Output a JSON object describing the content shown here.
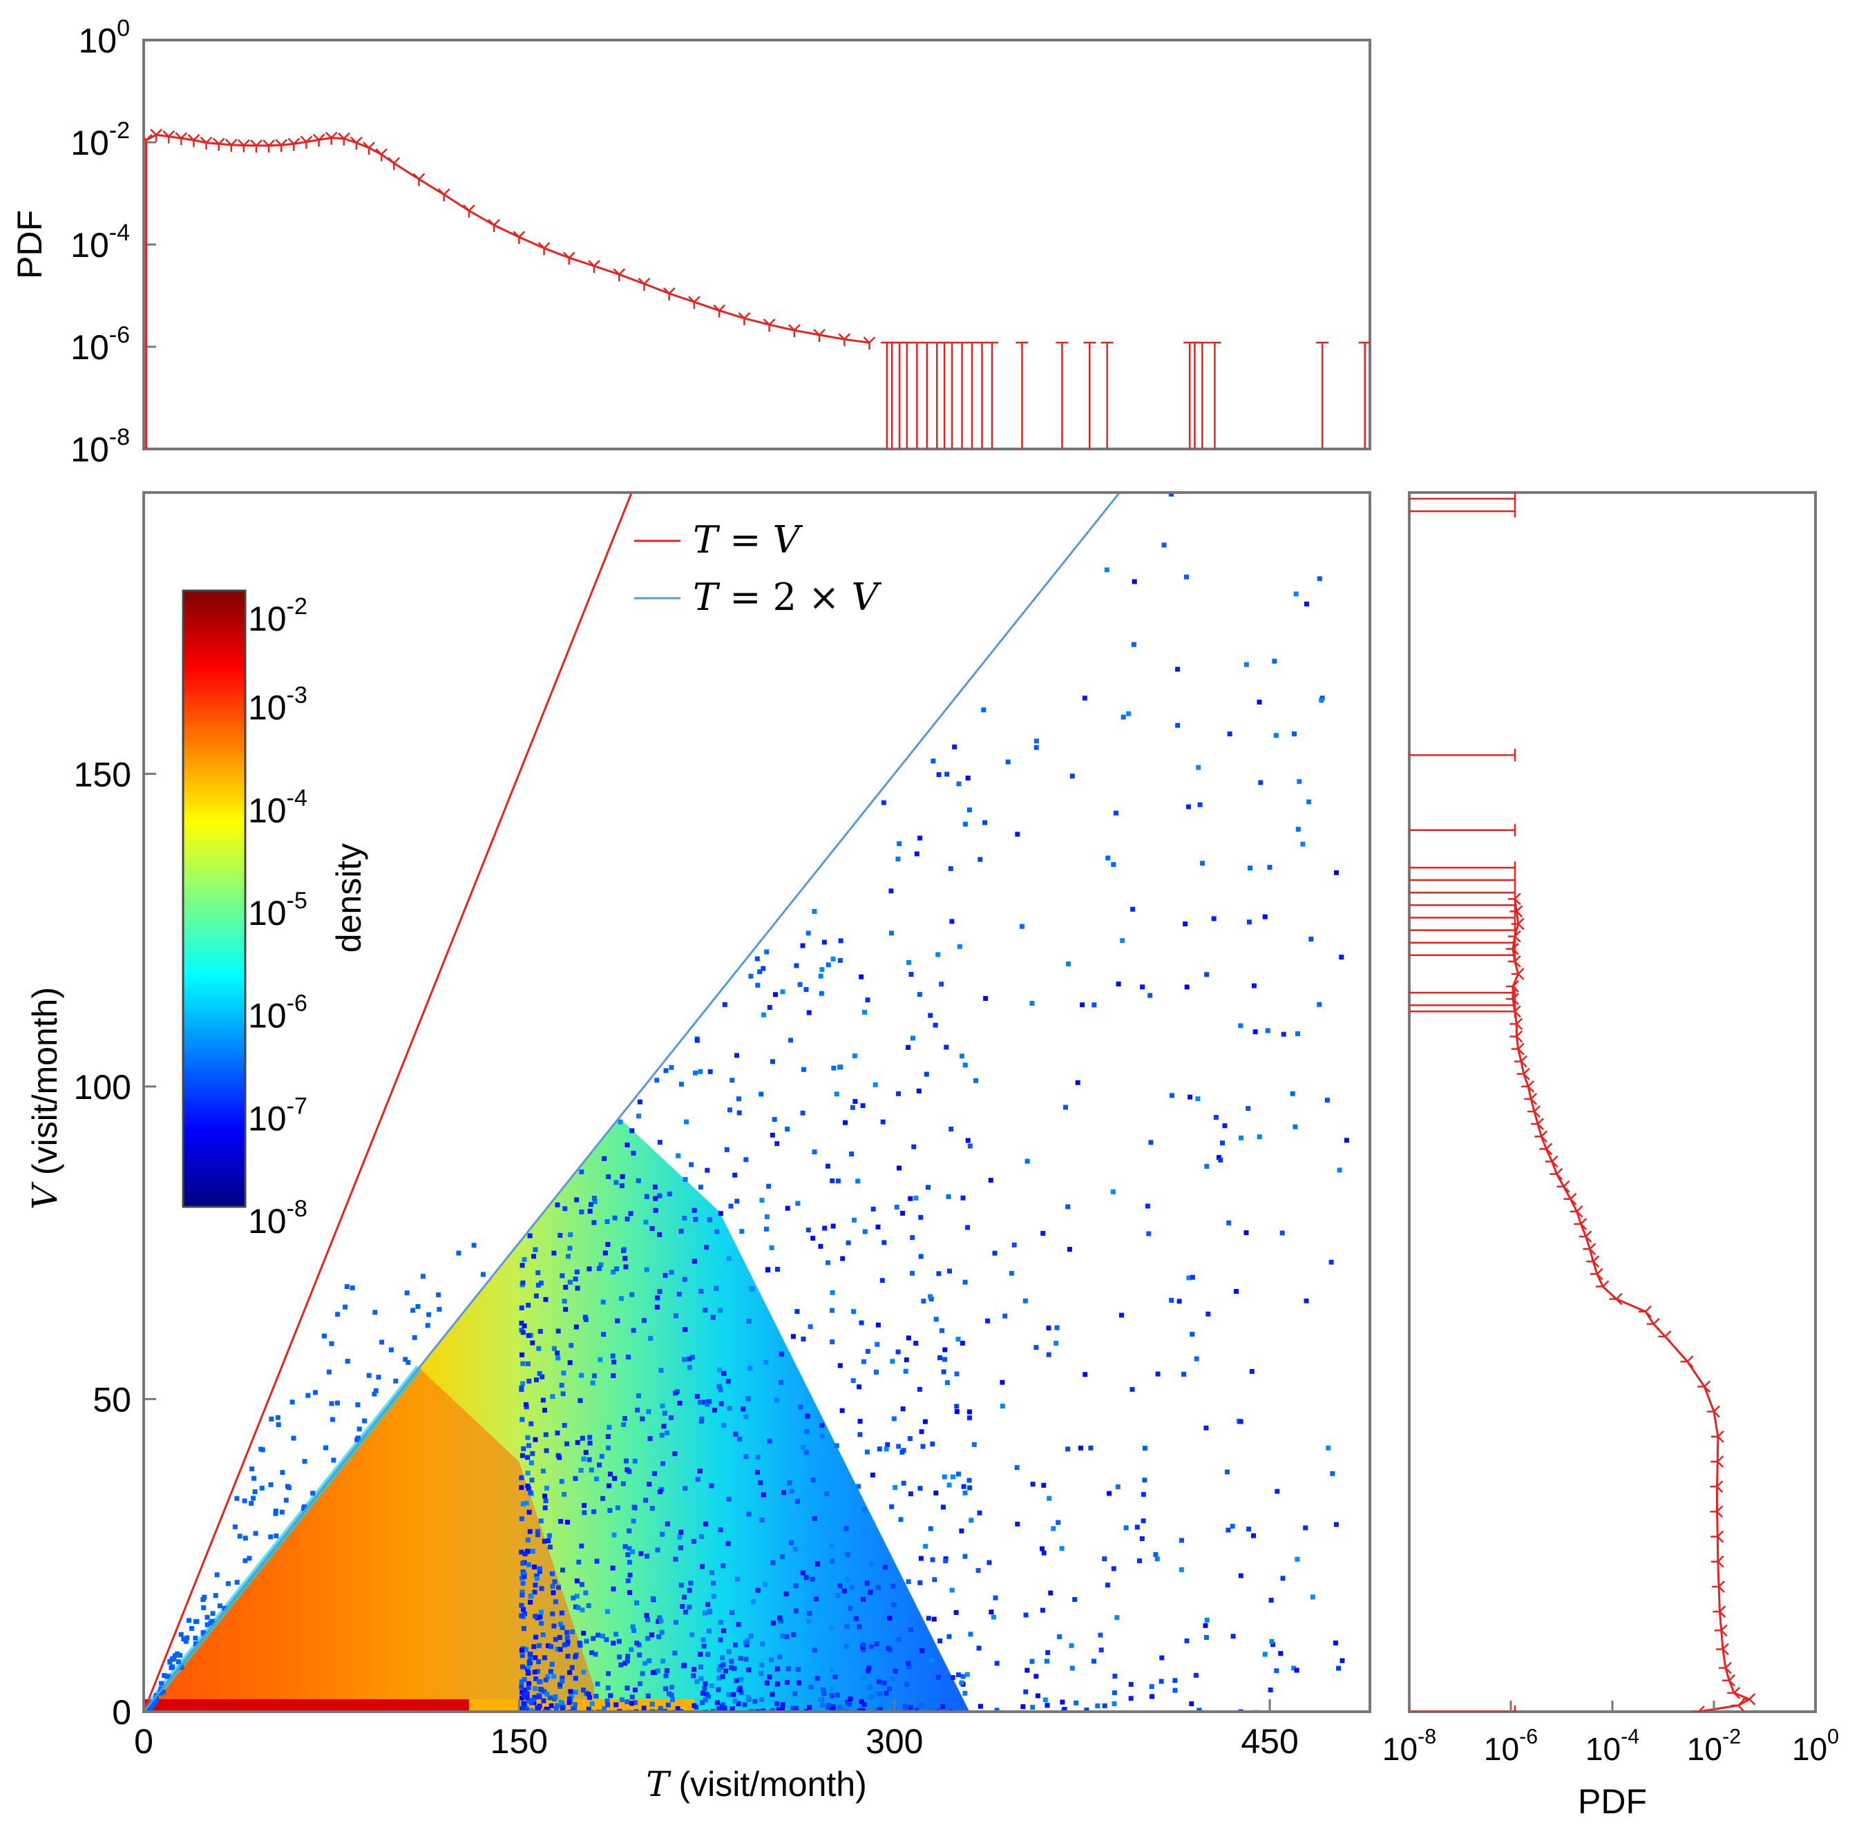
{
  "chart_data": [
    {
      "panel": "top-marginal",
      "type": "line",
      "ylabel": "PDF",
      "yscale": "log",
      "ylim": [
        1e-08,
        1
      ],
      "xlim": [
        0,
        490
      ],
      "y_ticks": [
        {
          "base": "10",
          "exp": "0"
        },
        {
          "base": "10",
          "exp": "-2"
        },
        {
          "base": "10",
          "exp": "-4"
        },
        {
          "base": "10",
          "exp": "-6"
        },
        {
          "base": "10",
          "exp": "-8"
        }
      ],
      "color": "#e8231f",
      "series": [
        {
          "x": [
            1,
            5,
            10,
            15,
            20,
            25,
            30,
            35,
            40,
            45,
            50,
            55,
            60,
            65,
            70,
            75,
            80,
            85,
            90,
            95,
            100,
            110,
            120,
            130,
            140,
            150,
            160,
            170,
            180,
            190,
            200,
            210,
            220,
            230,
            240,
            250,
            260,
            270,
            280,
            290
          ],
          "values": [
            0.011,
            0.014,
            0.013,
            0.012,
            0.011,
            0.0098,
            0.0093,
            0.0089,
            0.0087,
            0.0086,
            0.0086,
            0.0088,
            0.0093,
            0.0102,
            0.0112,
            0.0122,
            0.0118,
            0.0098,
            0.0078,
            0.0058,
            0.0039,
            0.0019,
            0.00095,
            0.00046,
            0.00024,
            0.00014,
            8.5e-05,
            5.5e-05,
            3.8e-05,
            2.6e-05,
            1.7e-05,
            1.1e-05,
            7.5e-06,
            5.1e-06,
            3.6e-06,
            2.7e-06,
            2.1e-06,
            1.7e-06,
            1.4e-06,
            1.2e-06
          ]
        },
        {
          "style": "stems",
          "x": [
            297,
            299,
            302,
            305,
            309,
            313,
            317,
            320,
            323,
            327,
            331,
            335,
            339,
            351,
            367,
            378,
            385,
            418,
            420,
            423,
            428,
            471,
            488
          ],
          "values": [
            1e-06,
            1e-06,
            1e-06,
            1e-06,
            1e-06,
            1e-06,
            1e-06,
            1e-06,
            1e-06,
            1e-06,
            1e-06,
            1e-06,
            1e-06,
            1e-06,
            1e-06,
            1e-06,
            1e-06,
            1e-06,
            1e-06,
            1e-06,
            1e-06,
            1e-06,
            1e-06
          ]
        }
      ]
    },
    {
      "panel": "main-heatmap",
      "type": "heatmap",
      "xlabel_var": "T",
      "xlabel_unit": " (visit/month)",
      "ylabel_var": "V",
      "ylabel_unit": " (visit/month)",
      "xlim": [
        0,
        490
      ],
      "ylim": [
        0,
        195
      ],
      "x_ticks": [
        "0",
        "150",
        "300",
        "450"
      ],
      "x_tick_values": [
        0,
        150,
        300,
        450
      ],
      "y_ticks": [
        "0",
        "50",
        "100",
        "150"
      ],
      "y_tick_values": [
        0,
        50,
        100,
        150
      ],
      "legend": [
        {
          "label_a": "T",
          "label_b": " = ",
          "label_c": "V",
          "color": "#e8231f"
        },
        {
          "label_a": "T",
          "label_b": " = 2 × ",
          "label_c": "V",
          "color": "#5b9bd5"
        }
      ],
      "legend_location": "top-center",
      "colorbar": {
        "label": "density",
        "scale": "log",
        "range": [
          1e-08,
          0.01
        ],
        "ticks": [
          {
            "base": "10",
            "exp": "-2"
          },
          {
            "base": "10",
            "exp": "-3"
          },
          {
            "base": "10",
            "exp": "-4"
          },
          {
            "base": "10",
            "exp": "-5"
          },
          {
            "base": "10",
            "exp": "-6"
          },
          {
            "base": "10",
            "exp": "-7"
          },
          {
            "base": "10",
            "exp": "-8"
          }
        ],
        "colormap": [
          "#00007f",
          "#0000ff",
          "#007fff",
          "#00ffff",
          "#7fff7f",
          "#ffff00",
          "#ff7f00",
          "#ff0000",
          "#7f0000"
        ]
      }
    },
    {
      "panel": "right-marginal",
      "type": "line",
      "xlabel": "PDF",
      "xscale": "log",
      "xlim": [
        1e-08,
        1
      ],
      "ylim": [
        0,
        195
      ],
      "x_ticks": [
        {
          "base": "10",
          "exp": "-8"
        },
        {
          "base": "10",
          "exp": "-6"
        },
        {
          "base": "10",
          "exp": "-4"
        },
        {
          "base": "10",
          "exp": "-2"
        },
        {
          "base": "10",
          "exp": "0"
        }
      ],
      "color": "#e8231f",
      "series": [
        {
          "y": [
            0,
            1,
            2,
            3,
            5,
            7,
            10,
            13,
            16,
            20,
            24,
            28,
            32,
            36,
            40,
            44,
            48,
            52,
            56,
            60,
            62,
            64,
            66,
            68,
            70,
            72,
            74,
            76,
            78,
            80,
            82,
            84,
            86,
            88,
            90,
            92,
            94,
            96,
            98,
            100,
            102,
            104,
            106,
            108,
            110,
            112,
            114,
            116,
            118,
            120,
            122,
            124,
            126,
            128,
            130
          ],
          "values": [
            0.005,
            0.03,
            0.05,
            0.025,
            0.02,
            0.017,
            0.015,
            0.014,
            0.013,
            0.0125,
            0.012,
            0.0118,
            0.0115,
            0.0115,
            0.0118,
            0.012,
            0.01,
            0.0065,
            0.003,
            0.0011,
            0.00065,
            0.00045,
            0.00012,
            6.5e-05,
            5e-05,
            4.2e-05,
            3.6e-05,
            3e-05,
            2.4e-05,
            2e-05,
            1.5e-05,
            1.1e-05,
            8e-06,
            6.5e-06,
            5e-06,
            4e-06,
            3.4e-06,
            2.9e-06,
            2.5e-06,
            2.2e-06,
            1.8e-06,
            1.6e-06,
            1.4e-06,
            1.3e-06,
            1.3e-06,
            1.2e-06,
            1.1e-06,
            1.1e-06,
            1.4e-06,
            1.2e-06,
            1.1e-06,
            1.2e-06,
            1.4e-06,
            1.3e-06,
            1.2e-06
          ]
        },
        {
          "style": "stems",
          "y": [
            0,
            112,
            113,
            115,
            121,
            123,
            125,
            127,
            129,
            131,
            133,
            135,
            141,
            153,
            192,
            194
          ],
          "values": [
            1e-06,
            1e-06,
            1e-06,
            1e-06,
            1e-06,
            1e-06,
            1e-06,
            1e-06,
            1e-06,
            1e-06,
            1e-06,
            1e-06,
            1e-06,
            1e-06,
            1e-06,
            1e-06
          ]
        }
      ]
    }
  ]
}
